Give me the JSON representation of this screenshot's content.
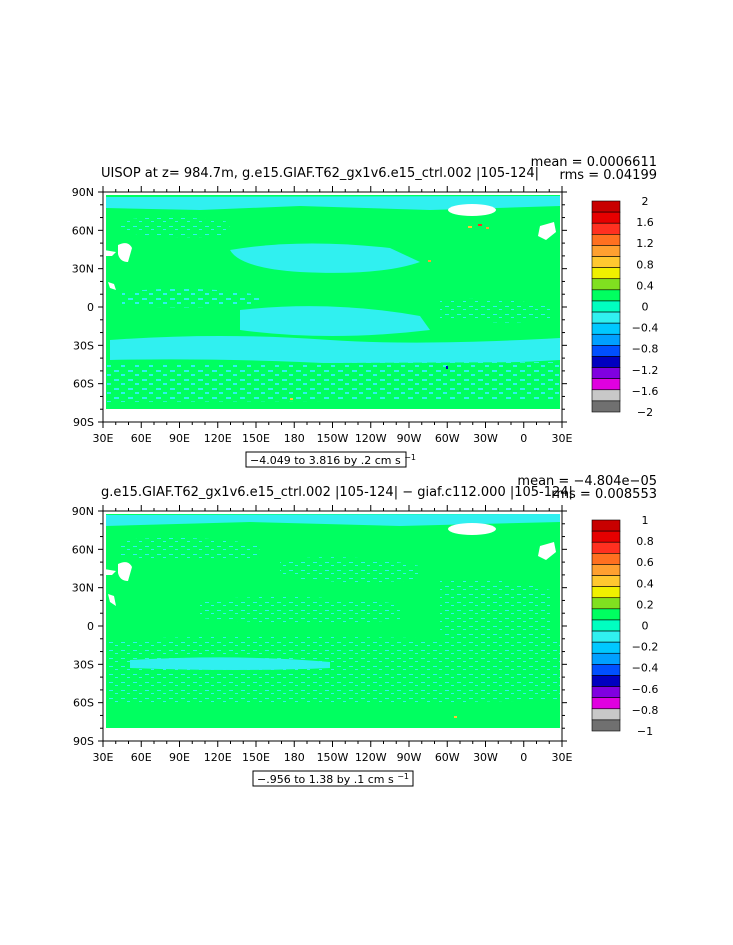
{
  "chart_data": [
    {
      "type": "heatmap",
      "title": "UISOP at z= 984.7m, g.e15.GIAF.T62_gx1v6.e15_ctrl.002 |105-124|",
      "stats": {
        "mean": "mean = 0.0006611",
        "rms": "rms = 0.04199"
      },
      "x_ticks": [
        "30E",
        "60E",
        "90E",
        "120E",
        "150E",
        "180",
        "150W",
        "120W",
        "90W",
        "60W",
        "30W",
        "0",
        "30E"
      ],
      "y_ticks": [
        "90N",
        "60N",
        "30N",
        "0",
        "30S",
        "60S",
        "90S"
      ],
      "range_label": "−4.049 to 3.816 by .2 cm s",
      "range_sup": "−1",
      "colorbar": {
        "labels": [
          "2",
          "1.6",
          "1.2",
          "0.8",
          "0.4",
          "0",
          "−0.4",
          "−0.8",
          "−1.2",
          "−1.6",
          "−2"
        ],
        "colors": [
          "#c80000",
          "#e60000",
          "#ff3020",
          "#ff7020",
          "#ffa030",
          "#ffc830",
          "#f0f000",
          "#80e020",
          "#00ff60",
          "#00ffc0",
          "#30f0f0",
          "#00c8ff",
          "#00a0ff",
          "#0050ff",
          "#0000c0",
          "#8000e0",
          "#e000e0",
          "#c8c8c8",
          "#707070"
        ]
      }
    },
    {
      "type": "heatmap",
      "title": "g.e15.GIAF.T62_gx1v6.e15_ctrl.002 |105-124| − giaf.c112.000 |105-124|",
      "stats": {
        "mean": "mean = −4.804e−05",
        "rms": "rms = 0.008553"
      },
      "x_ticks": [
        "30E",
        "60E",
        "90E",
        "120E",
        "150E",
        "180",
        "150W",
        "120W",
        "90W",
        "60W",
        "30W",
        "0",
        "30E"
      ],
      "y_ticks": [
        "90N",
        "60N",
        "30N",
        "0",
        "30S",
        "60S",
        "90S"
      ],
      "range_label": "−.956 to 1.38 by .1 cm s",
      "range_sup": "−1",
      "colorbar": {
        "labels": [
          "1",
          "0.8",
          "0.6",
          "0.4",
          "0.2",
          "0",
          "−0.2",
          "−0.4",
          "−0.6",
          "−0.8",
          "−1"
        ],
        "colors": [
          "#c80000",
          "#e60000",
          "#ff3020",
          "#ff7020",
          "#ffa030",
          "#ffc830",
          "#f0f000",
          "#80e020",
          "#00ff60",
          "#00ffc0",
          "#30f0f0",
          "#00c8ff",
          "#00a0ff",
          "#0050ff",
          "#0000c0",
          "#8000e0",
          "#e000e0",
          "#c8c8c8",
          "#707070"
        ]
      }
    }
  ],
  "colors": {
    "field": "#00ff60",
    "negative": "#30f0f0",
    "land": "#ffffff"
  }
}
